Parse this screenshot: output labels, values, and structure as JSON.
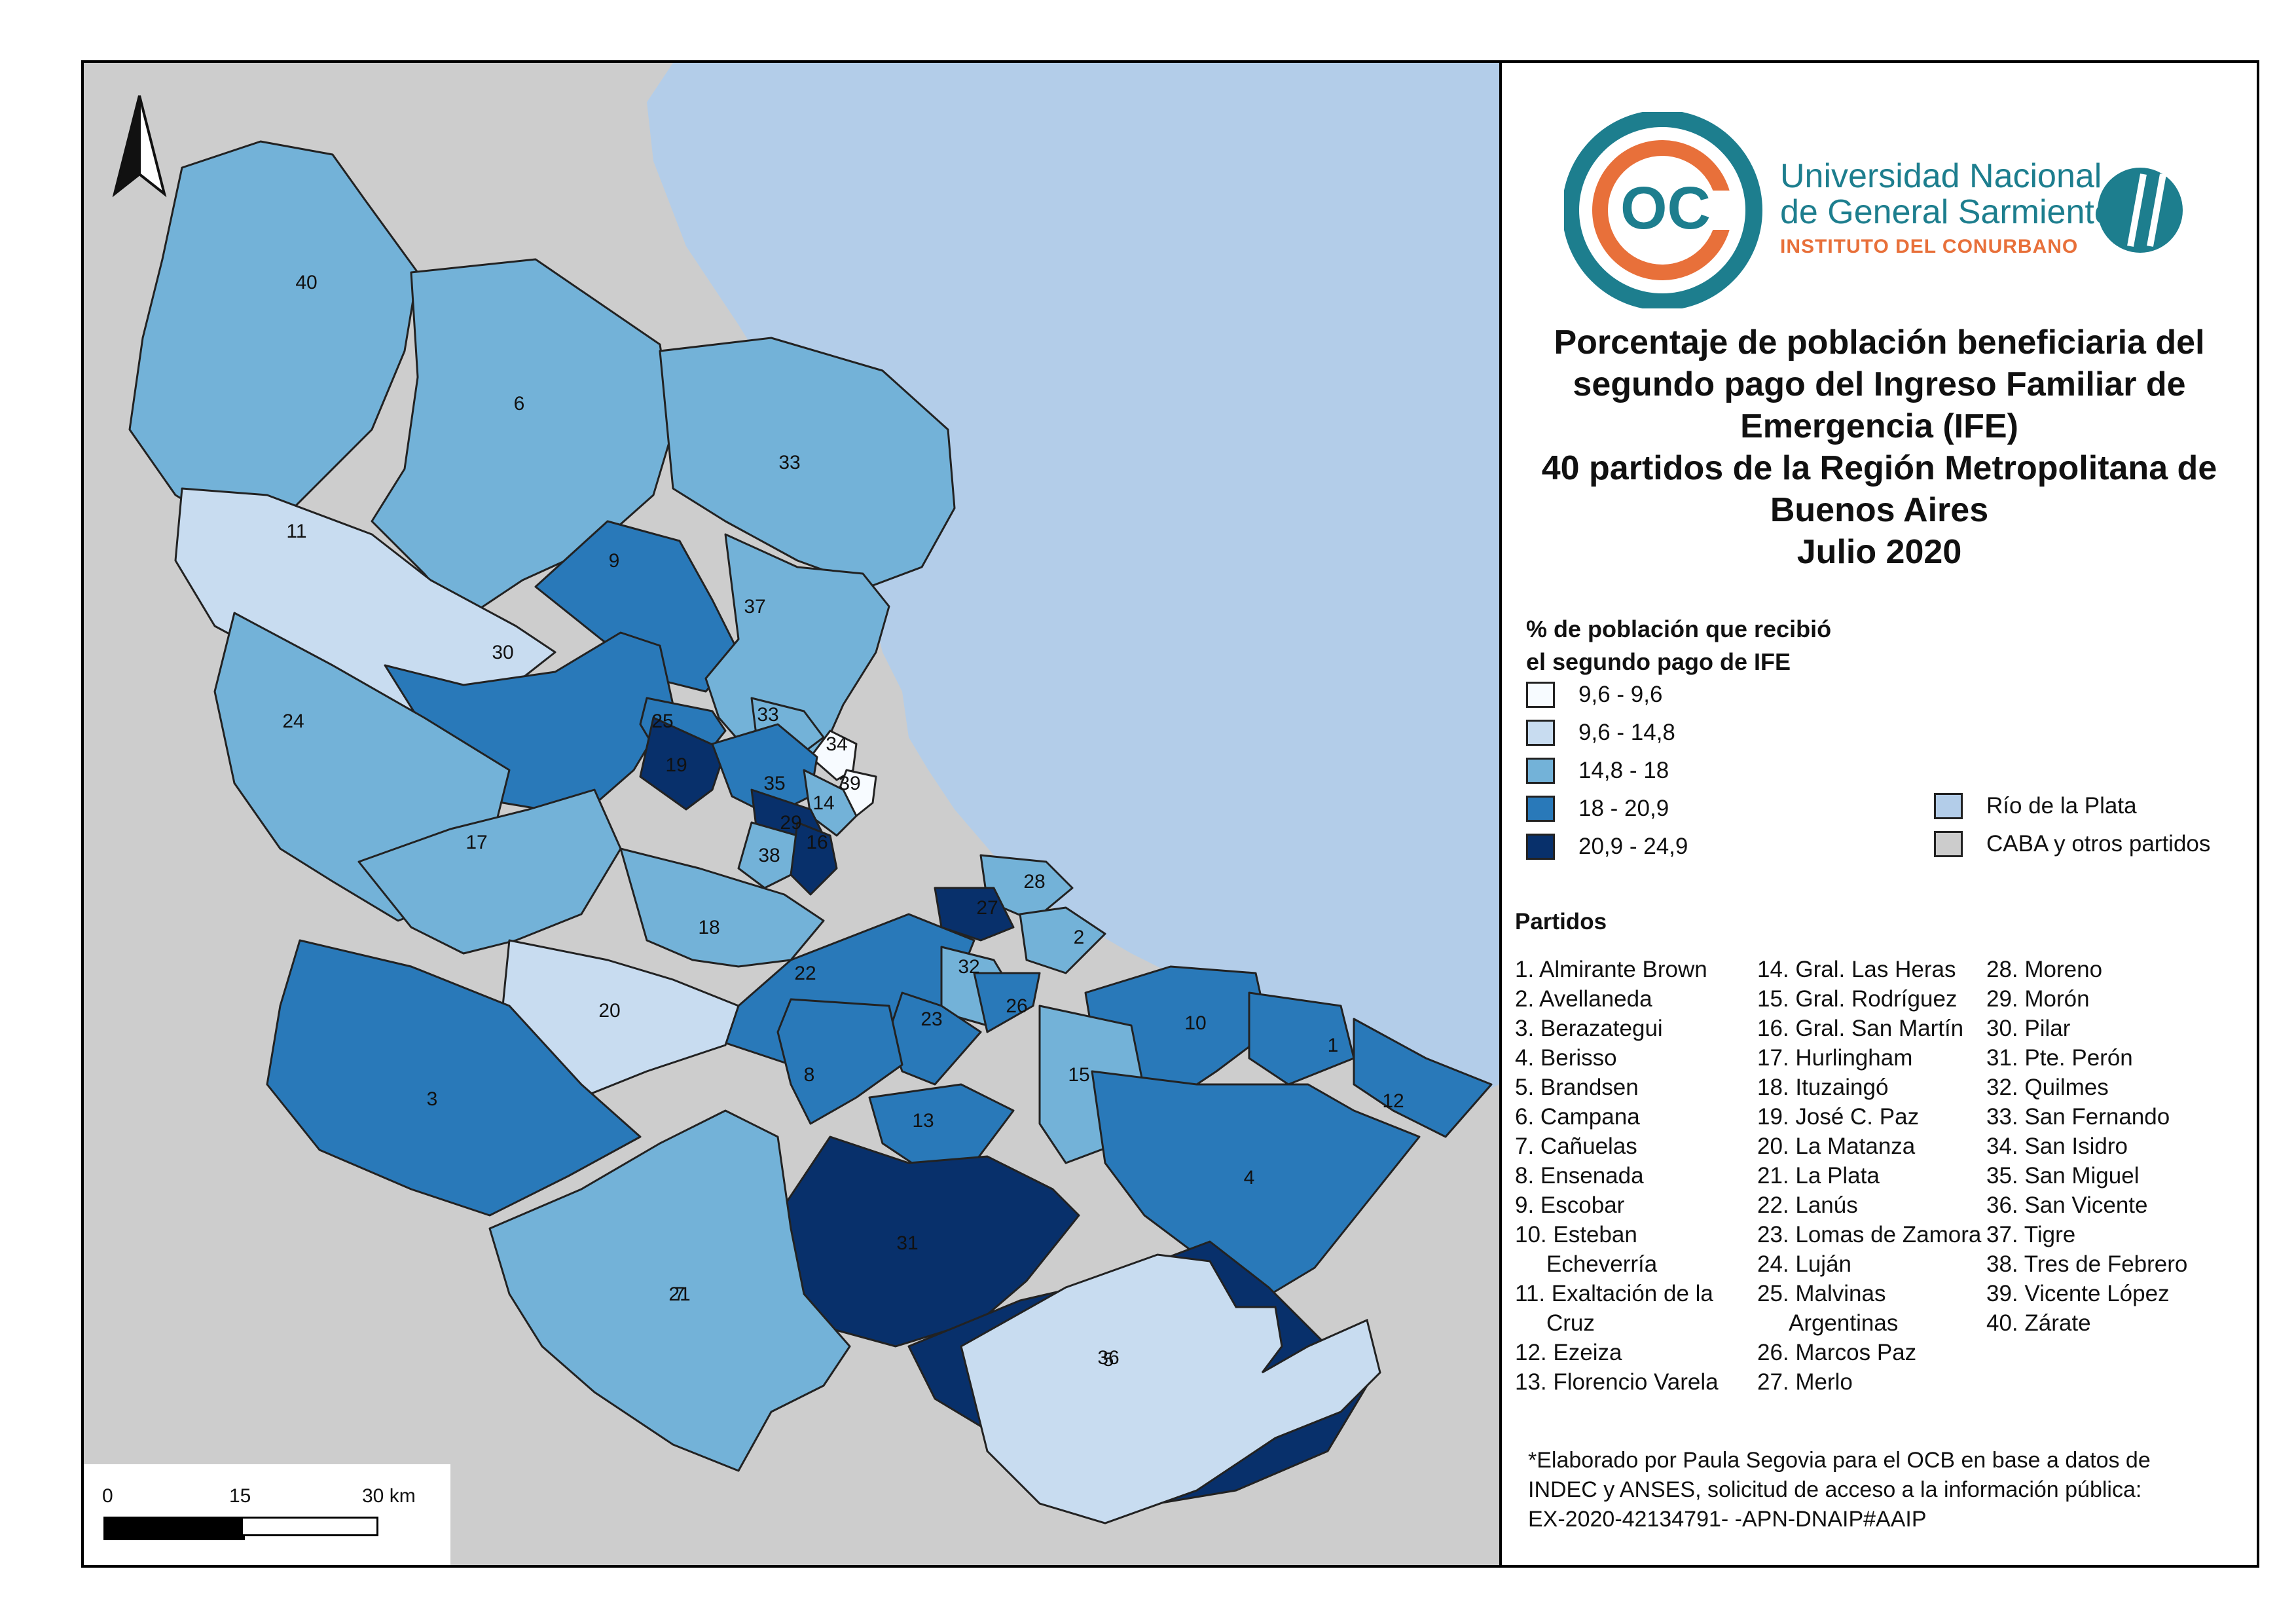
{
  "title_lines": [
    "Porcentaje de población beneficiaria del",
    "segundo pago del Ingreso Familiar de",
    "Emergencia (IFE)",
    "40 partidos de la Región Metropolitana de",
    "Buenos Aires",
    "Julio 2020"
  ],
  "logo": {
    "mark_text": "OC",
    "line1": "Universidad Nacional",
    "line2": "de General Sarmiento",
    "line3": "INSTITUTO DEL CONURBANO"
  },
  "legend": {
    "title_lines": [
      "% de población que recibió",
      "el segundo pago de IFE"
    ],
    "classes": [
      {
        "label": "9,6 - 9,6",
        "color": "#f7fbff"
      },
      {
        "label": "9,6 - 14,8",
        "color": "#c8dcf0"
      },
      {
        "label": "14,8 - 18",
        "color": "#73b2d8"
      },
      {
        "label": "18 - 20,9",
        "color": "#2979b9"
      },
      {
        "label": "20,9 - 24,9",
        "color": "#08306b"
      }
    ],
    "other": [
      {
        "label": "Río de la Plata",
        "color": "#b3cde9"
      },
      {
        "label": "CABA y otros partidos",
        "color": "#cccccc"
      }
    ]
  },
  "partidos_title": "Partidos",
  "partidos_columns": [
    [
      "1. Almirante Brown",
      "2. Avellaneda",
      "3. Berazategui",
      "4. Berisso",
      "5. Brandsen",
      "6. Campana",
      "7. Cañuelas",
      "8. Ensenada",
      "9. Escobar",
      "10. Esteban",
      "    Echeverría",
      "11. Exaltación de la",
      "    Cruz",
      "12. Ezeiza",
      "13. Florencio Varela"
    ],
    [
      "14. Gral. Las Heras",
      "15. Gral. Rodríguez",
      "16. Gral. San Martín",
      "17. Hurlingham",
      "18. Ituzaingó",
      "19. José C. Paz",
      "20. La Matanza",
      "21. La Plata",
      "22. Lanús",
      "23. Lomas de Zamora",
      "24. Luján",
      "25. Malvinas",
      "    Argentinas",
      "26. Marcos Paz",
      "27. Merlo"
    ],
    [
      "28. Moreno",
      "29. Morón",
      "30. Pilar",
      "31. Pte. Perón",
      "32. Quilmes",
      "33. San Fernando",
      "34. San Isidro",
      "35. San Miguel",
      "36. San Vicente",
      "37. Tigre",
      "38. Tres de Febrero",
      "39. Vicente López",
      "40. Zárate"
    ]
  ],
  "credit_lines": [
    "*Elaborado por Paula Segovia para el OCB en base a datos de",
    "INDEC y ANSES, solicitud de acceso a la información pública:",
    "EX-2020-42134791- -APN-DNAIP#AAIP"
  ],
  "scale": {
    "labels": [
      "0",
      "15",
      "30 km"
    ]
  },
  "map": {
    "partido_labels": [
      {
        "id": "40",
        "cls": 2
      },
      {
        "id": "6",
        "cls": 2
      },
      {
        "id": "33",
        "cls": 2
      },
      {
        "id": "11",
        "cls": 1
      },
      {
        "id": "9",
        "cls": 3
      },
      {
        "id": "37",
        "cls": 2
      },
      {
        "id": "30",
        "cls": 3
      },
      {
        "id": "25",
        "cls": 3
      },
      {
        "id": "33",
        "cls": 2
      },
      {
        "id": "34",
        "cls": 0
      },
      {
        "id": "19",
        "cls": 4
      },
      {
        "id": "39",
        "cls": 0
      },
      {
        "id": "24",
        "cls": 2
      },
      {
        "id": "35",
        "cls": 3
      },
      {
        "id": "14",
        "cls": 2
      },
      {
        "id": "29",
        "cls": 4
      },
      {
        "id": "17",
        "cls": 2
      },
      {
        "id": "38",
        "cls": 2
      },
      {
        "id": "16",
        "cls": 4
      },
      {
        "id": "18",
        "cls": 2
      },
      {
        "id": "28",
        "cls": 2
      },
      {
        "id": "27",
        "cls": 4
      },
      {
        "id": "2",
        "cls": 2
      },
      {
        "id": "22",
        "cls": 3
      },
      {
        "id": "32",
        "cls": 2
      },
      {
        "id": "20",
        "cls": 1
      },
      {
        "id": "23",
        "cls": 3
      },
      {
        "id": "26",
        "cls": 3
      },
      {
        "id": "10",
        "cls": 3
      },
      {
        "id": "1",
        "cls": 3
      },
      {
        "id": "3",
        "cls": 3
      },
      {
        "id": "8",
        "cls": 3
      },
      {
        "id": "15",
        "cls": 2
      },
      {
        "id": "12",
        "cls": 3
      },
      {
        "id": "13",
        "cls": 3
      },
      {
        "id": "4",
        "cls": 3
      },
      {
        "id": "31",
        "cls": 4
      },
      {
        "id": "21",
        "cls": 2
      },
      {
        "id": "36",
        "cls": 4
      },
      {
        "id": "7",
        "cls": 3
      },
      {
        "id": "5",
        "cls": 1
      }
    ]
  }
}
